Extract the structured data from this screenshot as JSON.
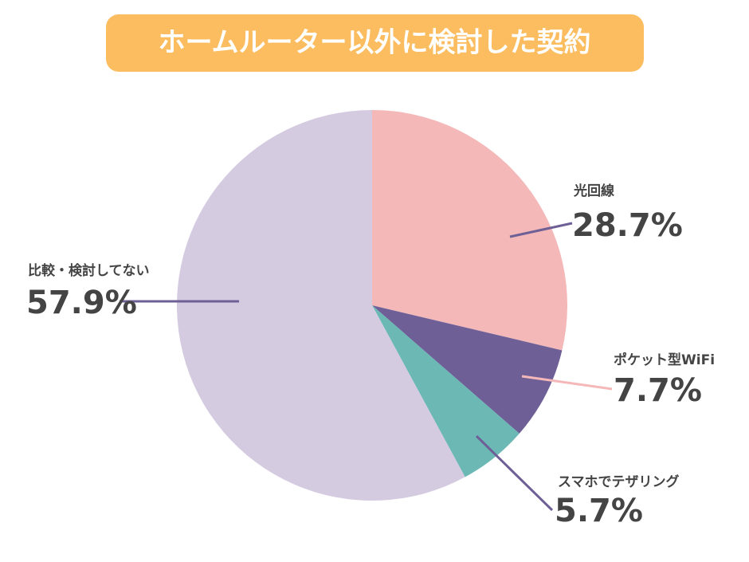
{
  "chart_data": {
    "type": "pie",
    "title": "ホームルーター以外に検討した契約",
    "categories": [
      "光回線",
      "ポケット型WiFi",
      "スマホでテザリング",
      "比較・検討してない"
    ],
    "values": [
      28.7,
      7.7,
      5.7,
      57.9
    ],
    "value_labels": [
      "28.7%",
      "7.7%",
      "5.7%",
      "57.9%"
    ],
    "colors": [
      "#f4b8b8",
      "#6e6096",
      "#6bb8b5",
      "#d5cbe1"
    ]
  }
}
